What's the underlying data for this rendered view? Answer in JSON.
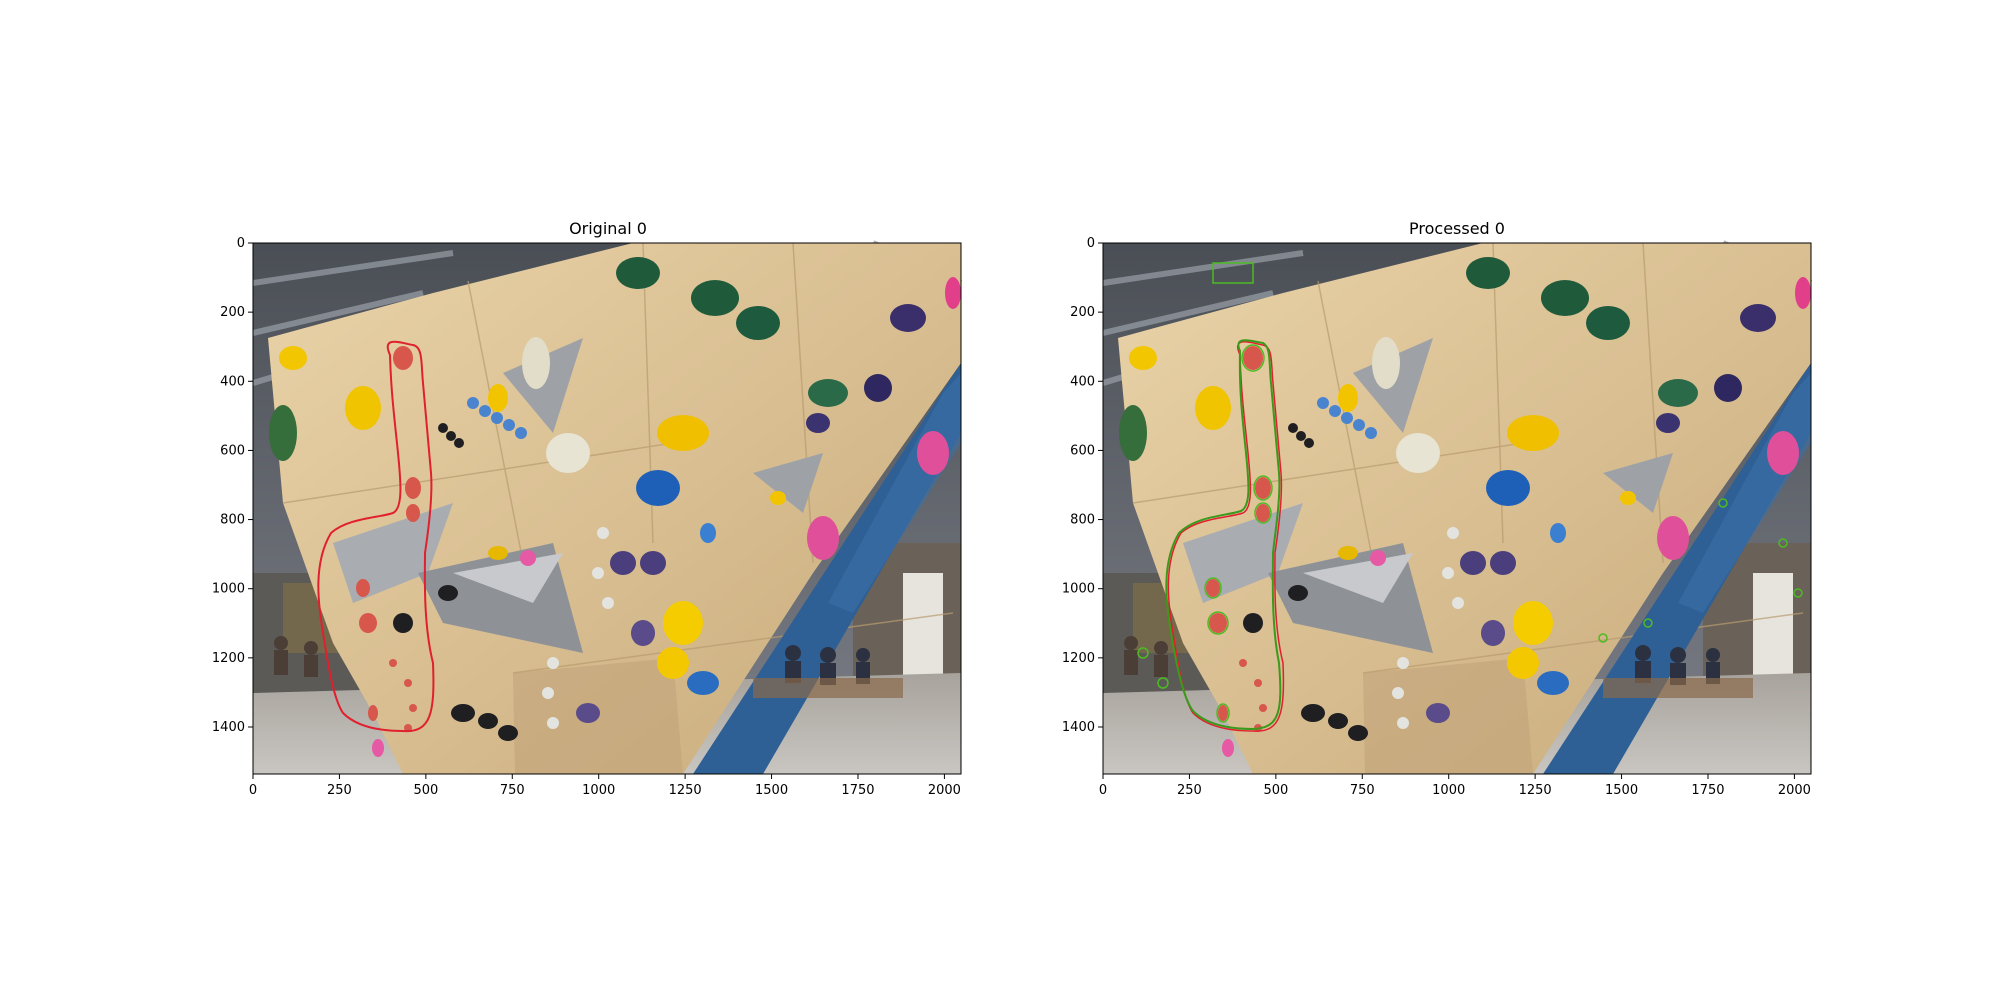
{
  "figure": {
    "panels": [
      {
        "title": "Original 0",
        "outline_color": "#e0202e",
        "x_ticks": [
          "0",
          "250",
          "500",
          "750",
          "1000",
          "1250",
          "1500",
          "1750",
          "2000"
        ],
        "y_ticks": [
          "0",
          "200",
          "400",
          "600",
          "800",
          "1000",
          "1200",
          "1400"
        ]
      },
      {
        "title": "Processed 0",
        "outline_color": "#3a9a1c",
        "x_ticks": [
          "0",
          "250",
          "500",
          "750",
          "1000",
          "1250",
          "1500",
          "1750",
          "2000"
        ],
        "y_ticks": [
          "0",
          "200",
          "400",
          "600",
          "800",
          "1000",
          "1200",
          "1400"
        ]
      }
    ]
  }
}
